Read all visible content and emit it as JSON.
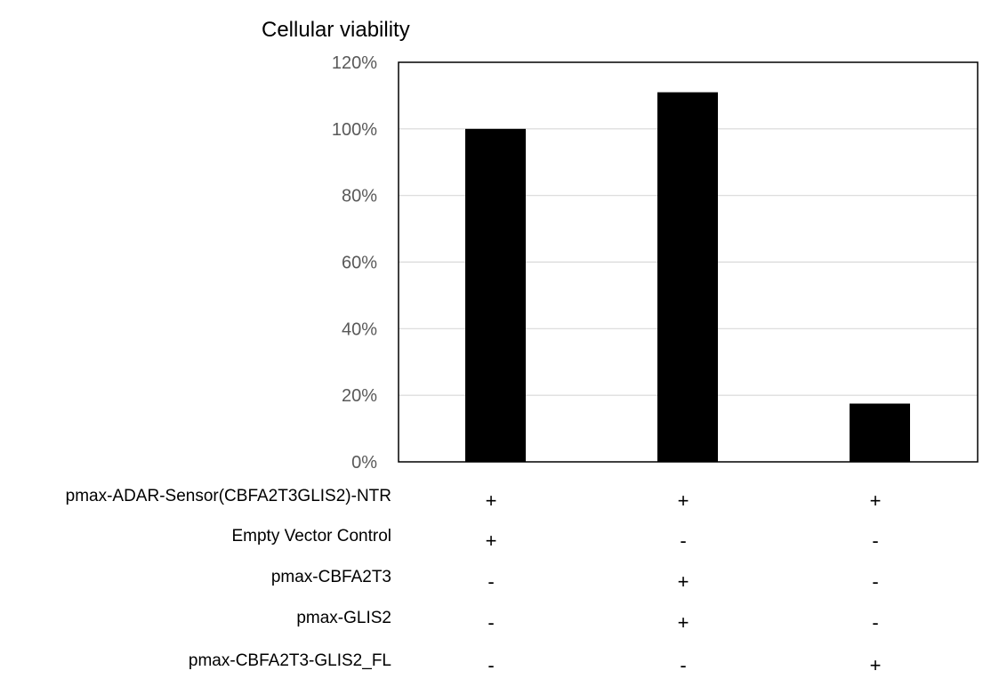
{
  "chart_data": {
    "type": "bar",
    "title": "Cellular viability",
    "xlabel": "",
    "ylabel": "",
    "categories": [
      "1",
      "2",
      "3"
    ],
    "values": [
      100,
      111,
      17.5
    ],
    "ylim": [
      0,
      120
    ],
    "yticks": [
      0,
      20,
      40,
      60,
      80,
      100,
      120
    ],
    "ytick_labels": [
      "0%",
      "20%",
      "40%",
      "60%",
      "80%",
      "100%",
      "120%"
    ],
    "grid": true,
    "bar_color": "#000000",
    "conditions": [
      {
        "label": "pmax-ADAR-Sensor(CBFA2T3GLIS2)-NTR",
        "signs": [
          "+",
          "+",
          "+"
        ]
      },
      {
        "label": "Empty Vector Control",
        "signs": [
          "+",
          "-",
          "-"
        ]
      },
      {
        "label": "pmax-CBFA2T3",
        "signs": [
          "-",
          "+",
          "-"
        ]
      },
      {
        "label": "pmax-GLIS2",
        "signs": [
          "-",
          "+",
          "-"
        ]
      },
      {
        "label": "pmax-CBFA2T3-GLIS2_FL",
        "signs": [
          "-",
          "-",
          "+"
        ]
      }
    ]
  }
}
